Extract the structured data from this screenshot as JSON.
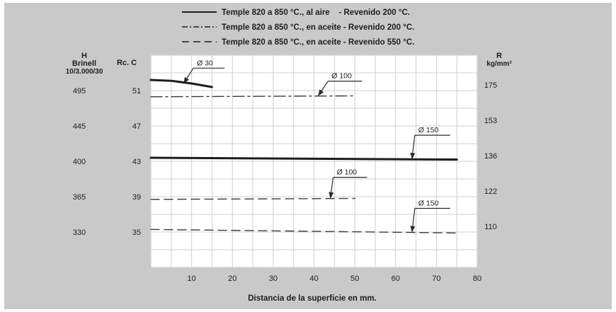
{
  "legend": [
    {
      "style": "solid",
      "text": "Temple 820 a 850 °C., al aire    - Revenido 200 °C."
    },
    {
      "style": "dashdot",
      "text": "Temple 820 a 850 °C., en aceite - Revenido 200 °C."
    },
    {
      "style": "dashed",
      "text": "Temple 820 a 850 °C., en aceite - Revenido 550 °C."
    }
  ],
  "axes": {
    "brinell_header": [
      "H",
      "Brinell",
      "10/3.000/30"
    ],
    "rockwell_header": "Rc. C",
    "strength_header": [
      "R",
      "kg/mm²"
    ],
    "xlabel": "Distancia de la superficie en mm.",
    "brinell_ticks": [
      "495",
      "445",
      "400",
      "365",
      "330"
    ],
    "rockwell_ticks": [
      "51",
      "47",
      "43",
      "39",
      "35"
    ],
    "strength_ticks": [
      "175",
      "153",
      "136",
      "122",
      "110"
    ]
  },
  "chart_data": {
    "type": "line",
    "title": "",
    "xlabel": "Distancia de la superficie en mm.",
    "ylabel": "Rc. C",
    "xlim": [
      0,
      80
    ],
    "ylim": [
      31,
      55
    ],
    "x_ticks": [
      10,
      20,
      30,
      40,
      50,
      60,
      70,
      80
    ],
    "y_ticks": [
      35,
      39,
      43,
      47,
      51
    ],
    "secondary_axes": {
      "left_brinell": {
        "label": "H Brinell 10/3.000/30",
        "ticks": [
          495,
          445,
          400,
          365,
          330
        ]
      },
      "right_R": {
        "label": "R kg/mm²",
        "ticks": [
          175,
          153,
          136,
          122,
          110
        ]
      }
    },
    "grid": true,
    "legend_position": "top",
    "series": [
      {
        "label": "Ø 30",
        "style": "solid",
        "width": "thick",
        "color": "#1c1c1c",
        "x": [
          0,
          5,
          10,
          15
        ],
        "y": [
          52.2,
          52.1,
          51.8,
          51.4
        ]
      },
      {
        "label": "Ø 100",
        "style": "dashdot",
        "width": "thin",
        "color": "#3a3a3a",
        "x": [
          0,
          50
        ],
        "y": [
          50.3,
          50.4
        ]
      },
      {
        "label": "Ø 150",
        "style": "solid",
        "width": "thick",
        "color": "#1c1c1c",
        "x": [
          0,
          75
        ],
        "y": [
          43.4,
          43.2
        ]
      },
      {
        "label": "Ø 100",
        "style": "dashed",
        "width": "thin",
        "color": "#3a3a3a",
        "x": [
          0,
          50
        ],
        "y": [
          38.7,
          38.8
        ]
      },
      {
        "label": "Ø 150",
        "style": "dashed",
        "width": "thin",
        "color": "#3a3a3a",
        "x": [
          0,
          75
        ],
        "y": [
          35.3,
          34.9
        ]
      }
    ],
    "annotations": [
      {
        "text": "Ø 30",
        "series": 0
      },
      {
        "text": "Ø 100",
        "series": 1
      },
      {
        "text": "Ø 150",
        "series": 2
      },
      {
        "text": "Ø 100",
        "series": 3
      },
      {
        "text": "Ø 150",
        "series": 4
      }
    ]
  },
  "colors": {
    "panel": "#c9c9c9",
    "plot": "#ffffff",
    "grid": "#cfcfcf",
    "ink": "#2a2a2a",
    "text": "#1e1e1e"
  }
}
